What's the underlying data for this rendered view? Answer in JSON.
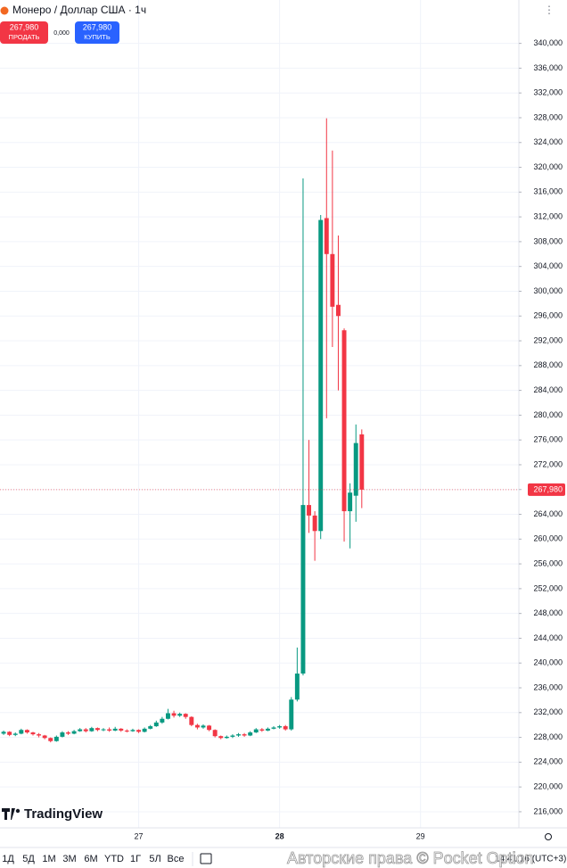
{
  "header": {
    "title": "Монеро / Доллар США · 1ч",
    "sell_price": "267,980",
    "sell_label": "ПРОДАТЬ",
    "spread": "0,000",
    "buy_price": "267,980",
    "buy_label": "КУПИТЬ"
  },
  "chart_data": {
    "type": "candlestick",
    "x": [
      26.0417,
      26.0833,
      26.125,
      26.1667,
      26.2083,
      26.25,
      26.2917,
      26.3333,
      26.375,
      26.4167,
      26.4583,
      26.5,
      26.5417,
      26.5833,
      26.625,
      26.6667,
      26.7083,
      26.75,
      26.7917,
      26.8333,
      26.875,
      26.9167,
      26.9583,
      27.0,
      27.0417,
      27.0833,
      27.125,
      27.1667,
      27.2083,
      27.25,
      27.2917,
      27.3333,
      27.375,
      27.4167,
      27.4583,
      27.5,
      27.5417,
      27.5833,
      27.625,
      27.6667,
      27.7083,
      27.75,
      27.7917,
      27.8333,
      27.875,
      27.9167,
      27.9583,
      28.0,
      28.0417,
      28.0833,
      28.125,
      28.1667,
      28.2083,
      28.25,
      28.2917,
      28.3333,
      28.375,
      28.4167,
      28.4583,
      28.5,
      28.5417,
      28.5833
    ],
    "open": [
      228600,
      228900,
      228400,
      228600,
      229200,
      228800,
      228500,
      228300,
      227900,
      227400,
      228100,
      228800,
      228600,
      229000,
      229300,
      229000,
      229500,
      229200,
      229300,
      229100,
      229400,
      229100,
      229000,
      229200,
      228900,
      229400,
      229800,
      230400,
      231000,
      231900,
      231500,
      231800,
      231300,
      230000,
      229600,
      229900,
      229200,
      228200,
      227900,
      228100,
      228300,
      228500,
      228300,
      228800,
      229300,
      229100,
      229400,
      229600,
      229800,
      229300,
      234100,
      238300,
      265500,
      263800,
      261300,
      311800,
      306000,
      297800,
      293700,
      264500,
      267000,
      276900
    ],
    "high": [
      229100,
      229000,
      228800,
      229400,
      229300,
      228900,
      228700,
      228400,
      228000,
      228300,
      229000,
      229000,
      229200,
      229500,
      229500,
      229700,
      229600,
      229500,
      229600,
      229700,
      229500,
      229300,
      229400,
      229300,
      229600,
      230000,
      230700,
      231300,
      232600,
      232300,
      232000,
      231900,
      231400,
      230200,
      230100,
      230000,
      229300,
      228300,
      228300,
      228500,
      228700,
      228700,
      229000,
      229500,
      229500,
      229600,
      229800,
      230000,
      230000,
      234500,
      242500,
      318200,
      276000,
      264500,
      312300,
      327900,
      322700,
      309000,
      294000,
      269000,
      278500,
      277700
    ],
    "low": [
      228400,
      228200,
      228200,
      228500,
      228600,
      228300,
      228000,
      227700,
      227200,
      227300,
      228000,
      228400,
      228500,
      228900,
      228800,
      228900,
      229000,
      229000,
      228900,
      229000,
      228900,
      228800,
      228900,
      228700,
      228800,
      229300,
      229700,
      230200,
      230900,
      231200,
      231300,
      231000,
      229800,
      229300,
      229400,
      229000,
      228000,
      227700,
      227800,
      227900,
      228100,
      228100,
      228200,
      228700,
      228900,
      229000,
      229300,
      229400,
      229100,
      229100,
      233800,
      238000,
      261000,
      256500,
      260000,
      279500,
      291000,
      284000,
      259600,
      258500,
      262800,
      265000
    ],
    "close": [
      228900,
      228400,
      228600,
      229200,
      228800,
      228500,
      228300,
      227900,
      227400,
      228100,
      228800,
      228600,
      229000,
      229300,
      229000,
      229500,
      229200,
      229300,
      229100,
      229400,
      229100,
      229000,
      229200,
      228900,
      229400,
      229800,
      230400,
      231000,
      231900,
      231500,
      231800,
      231300,
      230000,
      229600,
      229900,
      229200,
      228200,
      227900,
      228100,
      228300,
      228500,
      228300,
      228800,
      229300,
      229100,
      229400,
      229600,
      229800,
      229300,
      234100,
      238300,
      265500,
      263800,
      261300,
      311500,
      306000,
      297500,
      296000,
      264500,
      267500,
      275500,
      267980
    ],
    "up_color": "#089981",
    "down_color": "#f23645",
    "last_price": {
      "value": 267980,
      "label": "267,980"
    },
    "xlim": [
      26.016,
      29.698
    ],
    "xticks": [
      27,
      28,
      29
    ],
    "ylim": [
      213400,
      347000
    ],
    "yticks": [
      {
        "value": 216000,
        "label": "216,000"
      },
      {
        "value": 220000,
        "label": "220,000"
      },
      {
        "value": 224000,
        "label": "224,000"
      },
      {
        "value": 228000,
        "label": "228,000"
      },
      {
        "value": 232000,
        "label": "232,000"
      },
      {
        "value": 236000,
        "label": "236,000"
      },
      {
        "value": 240000,
        "label": "240,000"
      },
      {
        "value": 244000,
        "label": "244,000"
      },
      {
        "value": 248000,
        "label": "248,000"
      },
      {
        "value": 252000,
        "label": "252,000"
      },
      {
        "value": 256000,
        "label": "256,000"
      },
      {
        "value": 260000,
        "label": "260,000"
      },
      {
        "value": 264000,
        "label": "264,000"
      },
      {
        "value": 268000,
        "label": "268,000"
      },
      {
        "value": 272000,
        "label": "272,000"
      },
      {
        "value": 276000,
        "label": "276,000"
      },
      {
        "value": 280000,
        "label": "280,000"
      },
      {
        "value": 284000,
        "label": "284,000"
      },
      {
        "value": 288000,
        "label": "288,000"
      },
      {
        "value": 292000,
        "label": "292,000"
      },
      {
        "value": 296000,
        "label": "296,000"
      },
      {
        "value": 300000,
        "label": "300,000"
      },
      {
        "value": 304000,
        "label": "304,000"
      },
      {
        "value": 308000,
        "label": "308,000"
      },
      {
        "value": 312000,
        "label": "312,000"
      },
      {
        "value": 316000,
        "label": "316,000"
      },
      {
        "value": 320000,
        "label": "320,000"
      },
      {
        "value": 324000,
        "label": "324,000"
      },
      {
        "value": 328000,
        "label": "328,000"
      },
      {
        "value": 332000,
        "label": "332,000"
      },
      {
        "value": 336000,
        "label": "336,000"
      },
      {
        "value": 340000,
        "label": "340,000"
      }
    ],
    "grid": true
  },
  "branding": "TradingView",
  "toolbar": {
    "ranges": [
      "1Д",
      "5Д",
      "1М",
      "3М",
      "6М",
      "YTD",
      "1Г",
      "5Л",
      "Все"
    ],
    "time": "14:41:16 (UTC+3)"
  },
  "watermark": "Авторские права © Pocket Option"
}
